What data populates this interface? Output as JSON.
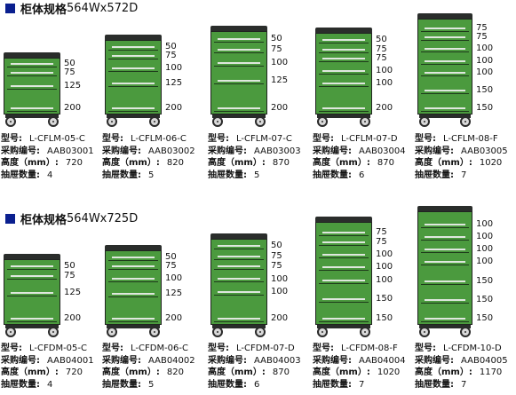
{
  "sections": [
    {
      "title": "柜体规格",
      "dims": "564Wx572D",
      "items": [
        {
          "model": "L-CFLM-05-C",
          "code": "AAB03001",
          "height": "720",
          "drawers": "4",
          "drawer_labels": [
            "50",
            "75",
            "125",
            "200"
          ]
        },
        {
          "model": "L-CFLM-06-C",
          "code": "AAB03002",
          "height": "820",
          "drawers": "5",
          "drawer_labels": [
            "50",
            "75",
            "100",
            "125",
            "200"
          ]
        },
        {
          "model": "L-CFLM-07-C",
          "code": "AAB03003",
          "height": "870",
          "drawers": "5",
          "drawer_labels": [
            "50",
            "75",
            "100",
            "125",
            "200"
          ]
        },
        {
          "model": "L-CFLM-07-D",
          "code": "AAB03004",
          "height": "870",
          "drawers": "6",
          "drawer_labels": [
            "50",
            "75",
            "75",
            "100",
            "100",
            "200"
          ]
        },
        {
          "model": "L-CFLM-08-F",
          "code": "AAB03005",
          "height": "1020",
          "drawers": "7",
          "drawer_labels": [
            "75",
            "75",
            "100",
            "100",
            "100",
            "150",
            "150"
          ]
        }
      ]
    },
    {
      "title": "柜体规格",
      "dims": "564Wx725D",
      "items": [
        {
          "model": "L-CFDM-05-C",
          "code": "AAB04001",
          "height": "720",
          "drawers": "4",
          "drawer_labels": [
            "50",
            "75",
            "125",
            "200"
          ]
        },
        {
          "model": "L-CFDM-06-C",
          "code": "AAB04002",
          "height": "820",
          "drawers": "5",
          "drawer_labels": [
            "50",
            "75",
            "100",
            "125",
            "200"
          ]
        },
        {
          "model": "L-CFDM-07-D",
          "code": "AAB04003",
          "height": "870",
          "drawers": "6",
          "drawer_labels": [
            "50",
            "75",
            "75",
            "100",
            "100",
            "200"
          ]
        },
        {
          "model": "L-CFDM-08-F",
          "code": "AAB04004",
          "height": "1020",
          "drawers": "7",
          "drawer_labels": [
            "75",
            "75",
            "100",
            "100",
            "100",
            "150",
            "150"
          ]
        },
        {
          "model": "L-CFDM-10-D",
          "code": "AAB04005",
          "height": "1170",
          "drawers": "7",
          "drawer_labels": [
            "100",
            "100",
            "100",
            "100",
            "150",
            "150",
            "150"
          ]
        }
      ]
    }
  ],
  "spec_labels": {
    "model": "型号:",
    "code": "采购编号:",
    "height": "高度（mm）:",
    "drawers": "抽屉数量:"
  },
  "colors": {
    "cabinet_green": "#4b9a3e",
    "cabinet_dark": "#2a2d2b",
    "header_square": "#0a1f8f"
  }
}
